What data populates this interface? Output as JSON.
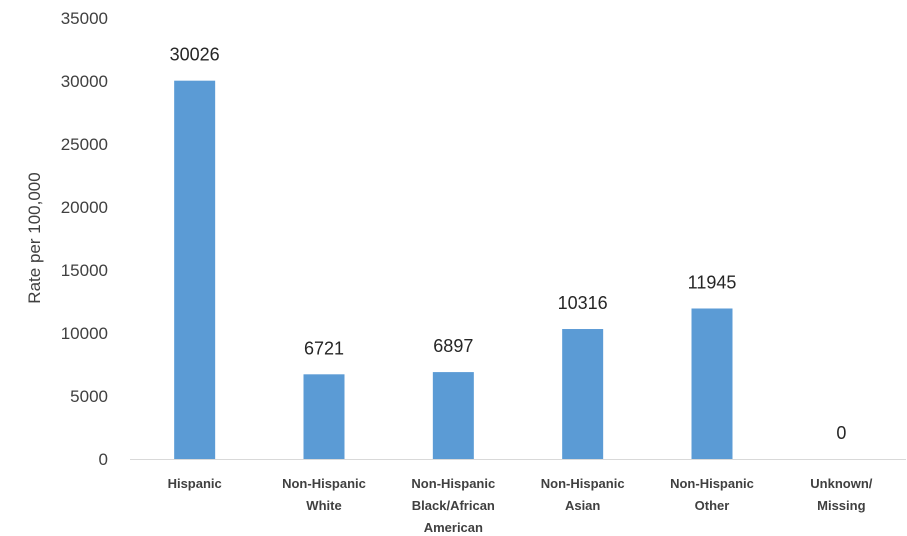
{
  "chart_data": {
    "type": "bar",
    "title": "",
    "xlabel": "",
    "ylabel": "Rate per 100,000",
    "ylim": [
      0,
      35000
    ],
    "yticks": [
      0,
      5000,
      10000,
      15000,
      20000,
      25000,
      30000,
      35000
    ],
    "grid": false,
    "categories": [
      [
        "Hispanic"
      ],
      [
        "Non-Hispanic",
        "White"
      ],
      [
        "Non-Hispanic",
        "Black/African",
        "American"
      ],
      [
        "Non-Hispanic",
        "Asian"
      ],
      [
        "Non-Hispanic",
        "Other"
      ],
      [
        "Unknown/",
        "Missing"
      ]
    ],
    "values": [
      30026,
      6721,
      6897,
      10316,
      11945,
      0
    ],
    "bar_color": "#5b9bd5",
    "axis_color": "#d9d9d9"
  }
}
